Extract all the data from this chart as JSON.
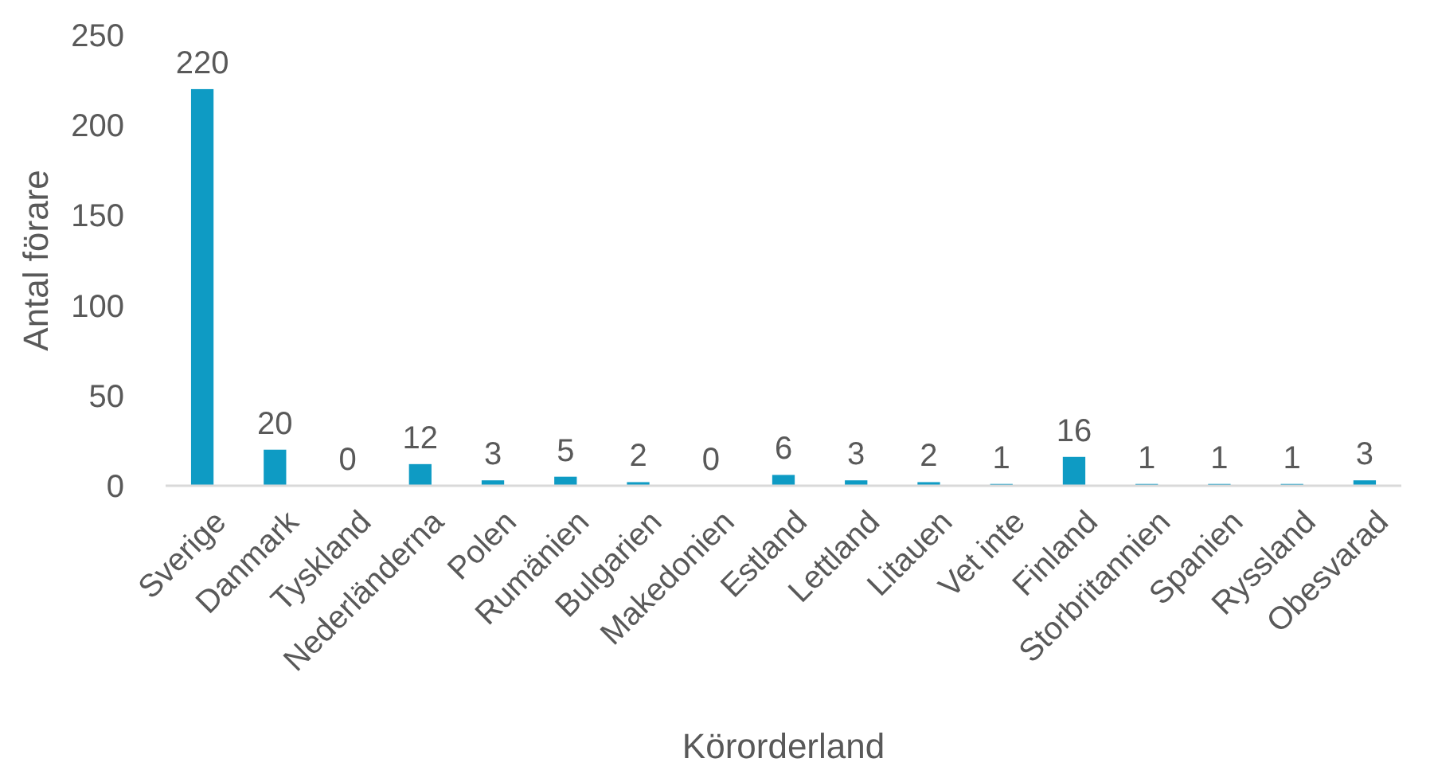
{
  "chart_data": {
    "type": "bar",
    "xlabel": "Körorderland",
    "ylabel": "Antal förare",
    "categories": [
      "Sverige",
      "Danmark",
      "Tyskland",
      "Nederländerna",
      "Polen",
      "Rumänien",
      "Bulgarien",
      "Makedonien",
      "Estland",
      "Lettland",
      "Litauen",
      "Vet inte",
      "Finland",
      "Storbritannien",
      "Spanien",
      "Ryssland",
      "Obesvarad"
    ],
    "values": [
      220,
      20,
      0,
      12,
      3,
      5,
      2,
      0,
      6,
      3,
      2,
      1,
      16,
      1,
      1,
      1,
      3
    ],
    "color": "#0e9bc4",
    "ylim": [
      0,
      250
    ],
    "yticks": [
      0,
      50,
      100,
      150,
      200,
      250
    ],
    "grid": false,
    "data_labels": true
  }
}
